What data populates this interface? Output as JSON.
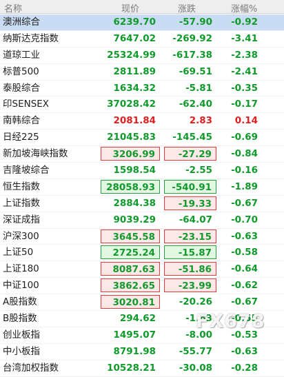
{
  "header": {
    "name": "名称",
    "price": "现价",
    "change": "涨跌",
    "pct": "涨幅%"
  },
  "colors": {
    "up": "#e02020",
    "down": "#109a2c",
    "box_red": "#e23b3b",
    "box_green": "#28a03c",
    "selected_row": "#c9dcf4"
  },
  "rows": [
    {
      "name": "澳洲综合",
      "price": "6239.70",
      "change": "-57.90",
      "pct": "-0.92",
      "dir": "down",
      "selected": true
    },
    {
      "name": "纳斯达克指数",
      "price": "7647.02",
      "change": "-269.92",
      "pct": "-3.41",
      "dir": "down"
    },
    {
      "name": "道琼工业",
      "price": "25324.99",
      "change": "-617.38",
      "pct": "-2.38",
      "dir": "down"
    },
    {
      "name": "标普500",
      "price": "2811.89",
      "change": "-69.51",
      "pct": "-2.41",
      "dir": "down"
    },
    {
      "name": "泰股综合",
      "price": "1634.32",
      "change": "-5.81",
      "pct": "-0.35",
      "dir": "down"
    },
    {
      "name": "印SENSEX",
      "price": "37028.42",
      "change": "-62.40",
      "pct": "-0.17",
      "dir": "down"
    },
    {
      "name": "南韩综合",
      "price": "2081.84",
      "change": "2.83",
      "pct": "0.14",
      "dir": "up"
    },
    {
      "name": "日经225",
      "price": "21045.83",
      "change": "-145.45",
      "pct": "-0.69",
      "dir": "down"
    },
    {
      "name": "新加坡海峡指数",
      "price": "3206.99",
      "change": "-27.29",
      "pct": "-0.84",
      "dir": "down",
      "price_box": "red",
      "change_box": "red"
    },
    {
      "name": "吉隆坡综合",
      "price": "1598.54",
      "change": "-2.55",
      "pct": "-0.16",
      "dir": "down"
    },
    {
      "name": "恒生指数",
      "price": "28058.93",
      "change": "-540.91",
      "pct": "-1.89",
      "dir": "down",
      "price_box": "green",
      "change_box": "green"
    },
    {
      "name": "上证指数",
      "price": "2884.38",
      "change": "-19.33",
      "pct": "-0.67",
      "dir": "down",
      "change_box": "red"
    },
    {
      "name": "深证成指",
      "price": "9039.29",
      "change": "-64.07",
      "pct": "-0.70",
      "dir": "down"
    },
    {
      "name": "沪深300",
      "price": "3645.58",
      "change": "-23.15",
      "pct": "-0.63",
      "dir": "down",
      "price_box": "red",
      "change_box": "red"
    },
    {
      "name": "上证50",
      "price": "2725.24",
      "change": "-15.87",
      "pct": "-0.58",
      "dir": "down",
      "price_box": "green",
      "change_box": "green"
    },
    {
      "name": "上证180",
      "price": "8087.63",
      "change": "-51.86",
      "pct": "-0.64",
      "dir": "down",
      "price_box": "red",
      "change_box": "red"
    },
    {
      "name": "中证100",
      "price": "3862.65",
      "change": "-23.99",
      "pct": "-0.62",
      "dir": "down",
      "price_box": "red",
      "change_box": "red"
    },
    {
      "name": "A股指数",
      "price": "3020.81",
      "change": "-20.26",
      "pct": "-0.67",
      "dir": "down",
      "price_box": "red"
    },
    {
      "name": "B股指数",
      "price": "294.62",
      "change": "-1.63",
      "pct": "-0.55",
      "dir": "down"
    },
    {
      "name": "创业板指",
      "price": "1495.07",
      "change": "-8.00",
      "pct": "-0.53",
      "dir": "down"
    },
    {
      "name": "中小板指",
      "price": "8791.98",
      "change": "-55.77",
      "pct": "-0.63",
      "dir": "down"
    },
    {
      "name": "台湾加权指数",
      "price": "10528.21",
      "change": "-30.08",
      "pct": "-0.28",
      "dir": "down"
    }
  ],
  "watermark": "FX678"
}
